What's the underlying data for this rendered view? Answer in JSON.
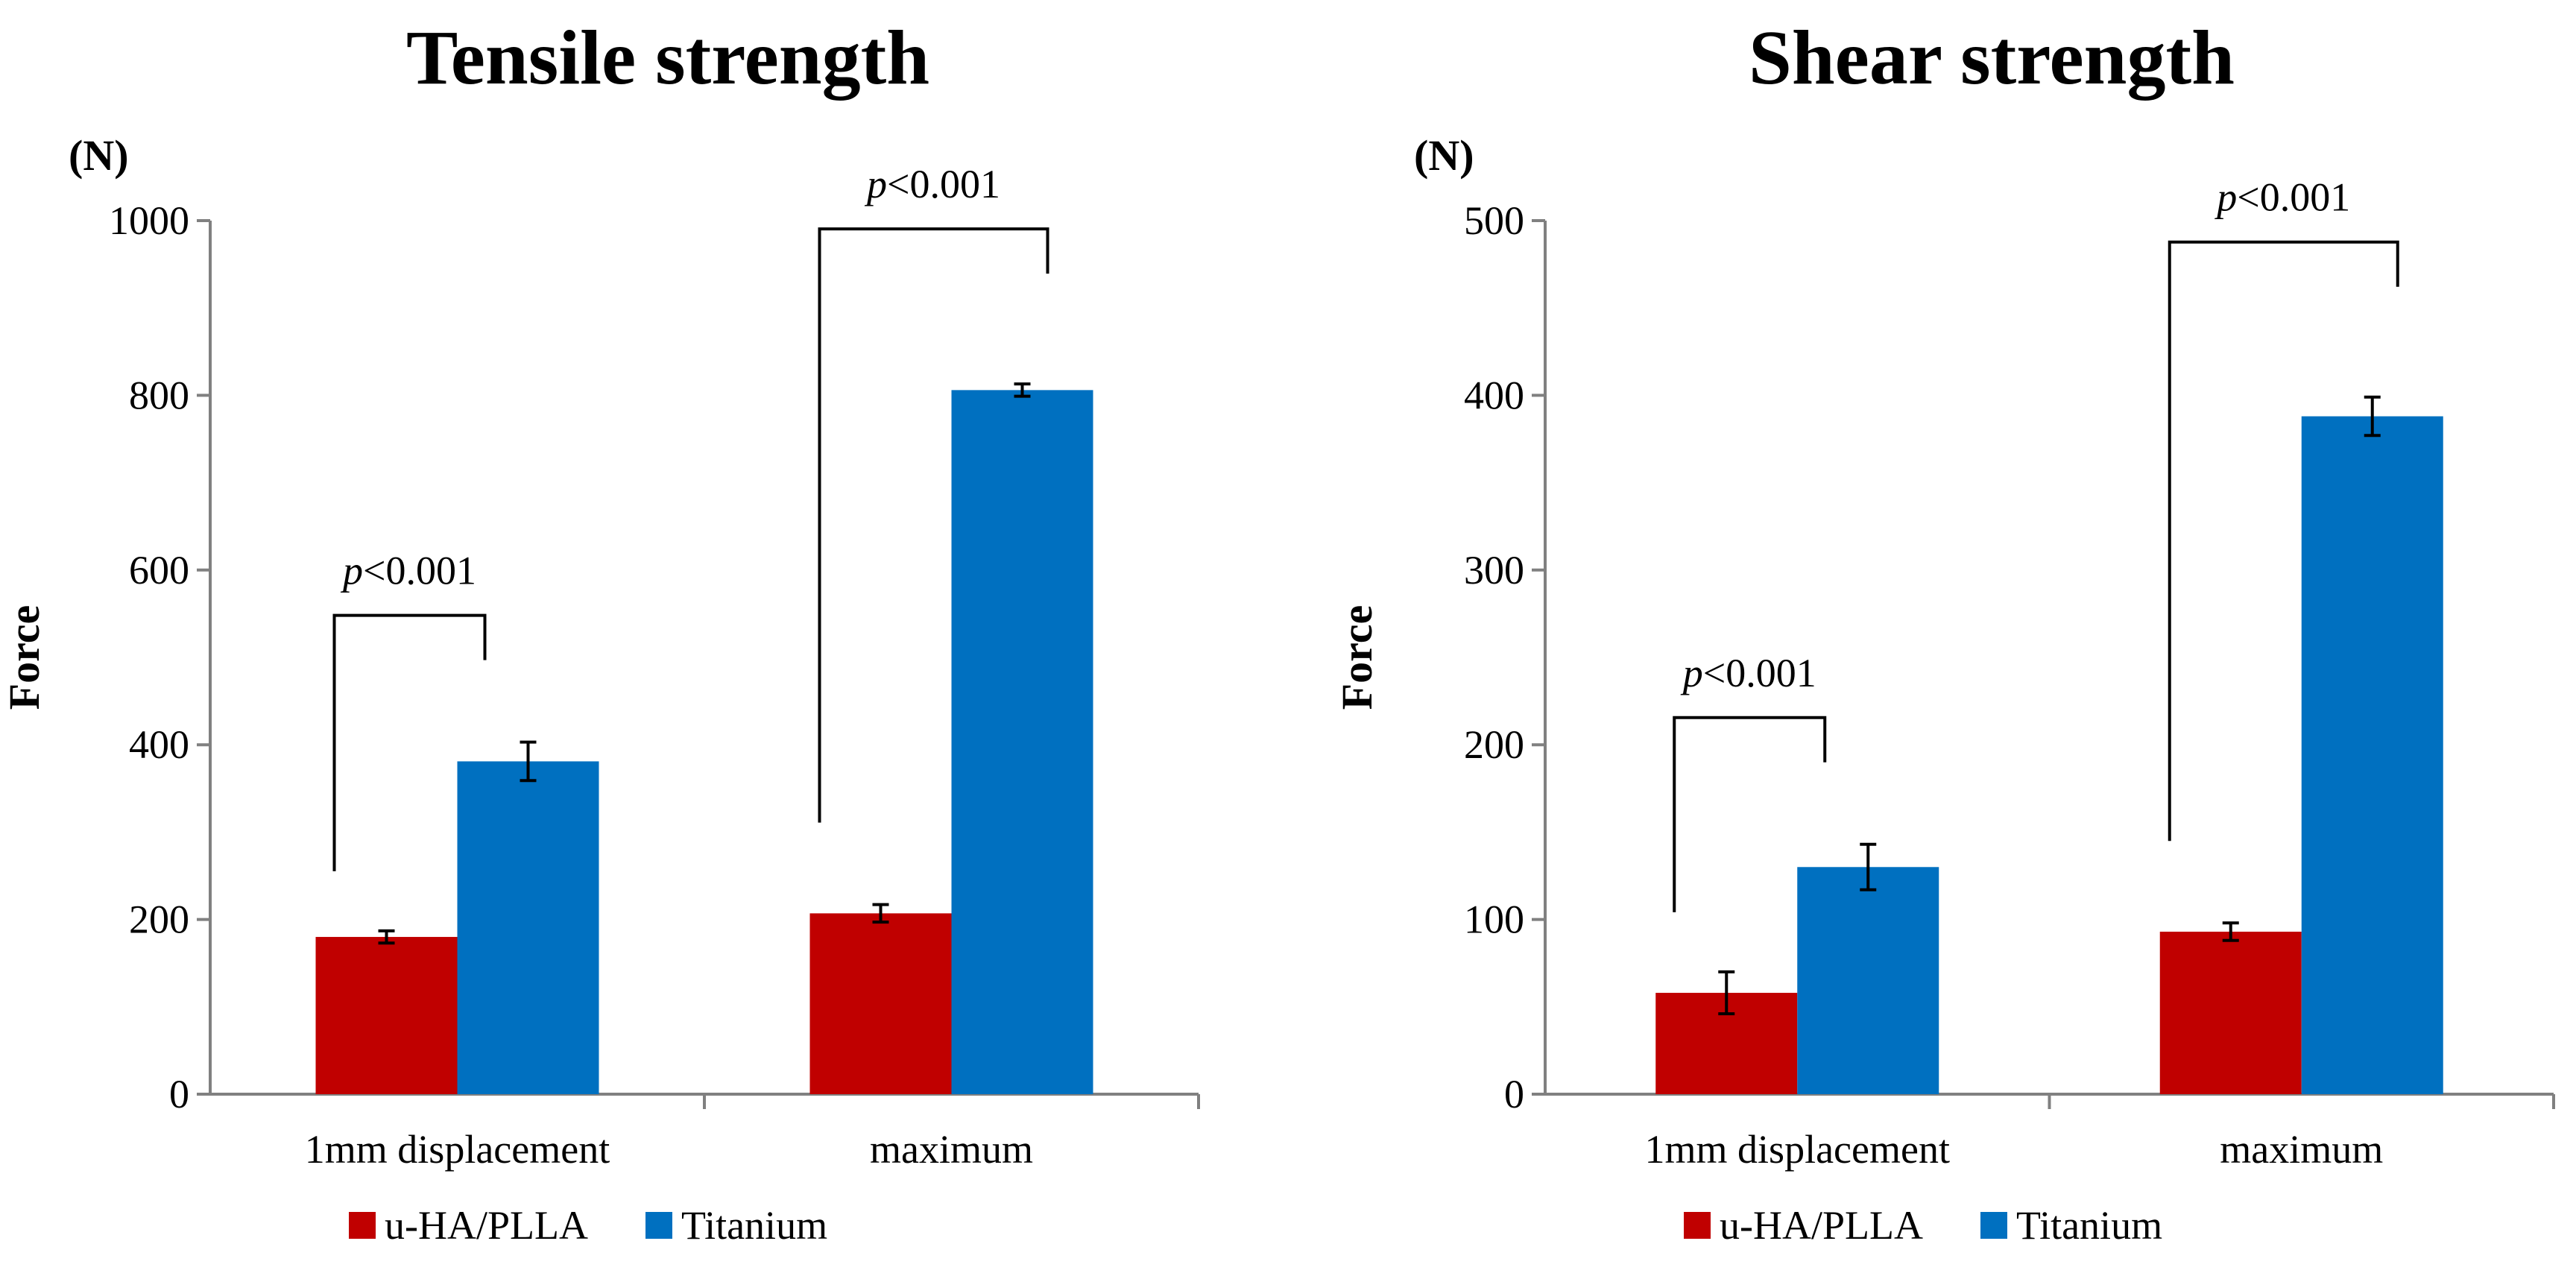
{
  "colors": {
    "series_1": "#c00000",
    "series_2": "#0070c0",
    "axis": "#808080",
    "text": "#000000"
  },
  "chart_data": [
    {
      "type": "bar",
      "title": "Tensile strength",
      "unit_label": "(N)",
      "ylabel": "Force",
      "xlabel": "",
      "ylim": [
        0,
        1000
      ],
      "yticks": [
        0,
        200,
        400,
        600,
        800,
        1000
      ],
      "categories": [
        "1mm displacement",
        "maximum"
      ],
      "series": [
        {
          "name": "u-HA/PLLA",
          "values": [
            180,
            207
          ],
          "errors": [
            7,
            10
          ]
        },
        {
          "name": "Titanium",
          "values": [
            381,
            806
          ],
          "errors": [
            22,
            7
          ]
        }
      ],
      "annotations": [
        {
          "category": "1mm displacement",
          "prefix": "p",
          "text": "<0.001"
        },
        {
          "category": "maximum",
          "prefix": "p",
          "text": "<0.001"
        }
      ],
      "legend": "bottom",
      "grid": false
    },
    {
      "type": "bar",
      "title": "Shear strength",
      "unit_label": "(N)",
      "ylabel": "Force",
      "xlabel": "",
      "ylim": [
        0,
        500
      ],
      "yticks": [
        0,
        100,
        200,
        300,
        400,
        500
      ],
      "categories": [
        "1mm displacement",
        "maximum"
      ],
      "series": [
        {
          "name": "u-HA/PLLA",
          "values": [
            58,
            93
          ],
          "errors": [
            12,
            5
          ]
        },
        {
          "name": "Titanium",
          "values": [
            130,
            388
          ],
          "errors": [
            13,
            11
          ]
        }
      ],
      "annotations": [
        {
          "category": "1mm displacement",
          "prefix": "p",
          "text": "<0.001"
        },
        {
          "category": "maximum",
          "prefix": "p",
          "text": "<0.001"
        }
      ],
      "legend": "bottom",
      "grid": false
    }
  ]
}
